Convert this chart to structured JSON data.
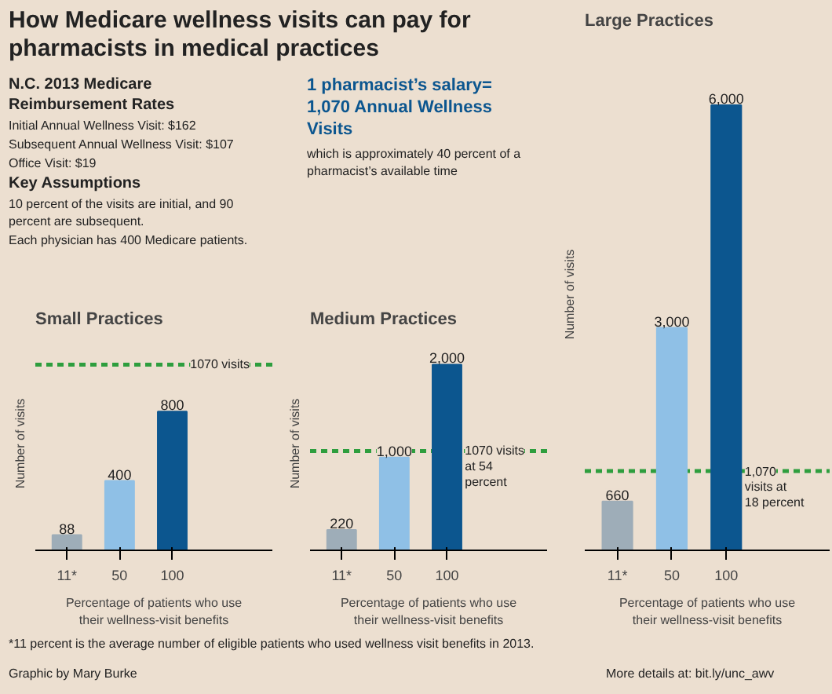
{
  "chart_data": [
    {
      "type": "other",
      "title": "How Medicare wellness visits can pay for pharmacists in medical practices",
      "annotations": [
        "N.C. 2013 Medicare Reimbursement Rates",
        "Initial Annual Wellness Visit: $162",
        "Subsequent Annual Wellness Visit: $107",
        "Office Visit: $19",
        "Key Assumptions",
        "10 percent of the visits are initial, and 90 percent are subsequent.",
        "Each physician has 400 Medicare patients.",
        "1 pharmacist’s salary= 1,070 Annual Wellness Visits",
        "which is approximately 40 percent of a pharmacist’s available time",
        "*11 percent is the average number of eligible patients who used wellness visit benefits in 2013.",
        "Graphic by Mary Burke",
        "More details at: bit.ly/unc_awv"
      ]
    },
    {
      "type": "bar",
      "title": "Small Practices",
      "xlabel": "Percentage of patients who use their wellness-visit benefits",
      "ylabel": "Number of visits",
      "categories": [
        "11*",
        "50",
        "100"
      ],
      "values": [
        88,
        400,
        800
      ],
      "colors": [
        "#9eadb8",
        "#8fc0e6",
        "#0c568f"
      ],
      "data_labels": true,
      "tick_labels": "x",
      "grid": false,
      "ref_lines": [
        {
          "axis": "y",
          "value": 1070,
          "label": "1070 visits",
          "color": "#2e9e3e",
          "line_style": "dashed"
        }
      ]
    },
    {
      "type": "bar",
      "title": "Medium Practices",
      "xlabel": "Percentage of patients who use their wellness-visit benefits",
      "ylabel": "Number of visits",
      "categories": [
        "11*",
        "50",
        "100"
      ],
      "values": [
        220,
        1000,
        2000
      ],
      "value_labels": [
        "220",
        "1,000",
        "2,000"
      ],
      "colors": [
        "#9eadb8",
        "#8fc0e6",
        "#0c568f"
      ],
      "tick_labels": "x",
      "grid": false,
      "ref_lines": [
        {
          "axis": "y",
          "value": 1070,
          "label": "1070 visits at 54 percent",
          "color": "#2e9e3e",
          "line_style": "dashed"
        }
      ]
    },
    {
      "type": "bar",
      "title": "Large Practices",
      "xlabel": "Percentage of patients who use their wellness-visit benefits",
      "ylabel": "Number of visits",
      "categories": [
        "11*",
        "50",
        "100"
      ],
      "values": [
        660,
        3000,
        6000
      ],
      "value_labels": [
        "660",
        "3,000",
        "6,000"
      ],
      "colors": [
        "#9eadb8",
        "#8fc0e6",
        "#0c568f"
      ],
      "tick_labels": "x",
      "grid": false,
      "ref_lines": [
        {
          "axis": "y",
          "value": 1070,
          "label": "1,070 visits at 18 percent",
          "color": "#2e9e3e",
          "line_style": "dashed"
        }
      ]
    }
  ]
}
